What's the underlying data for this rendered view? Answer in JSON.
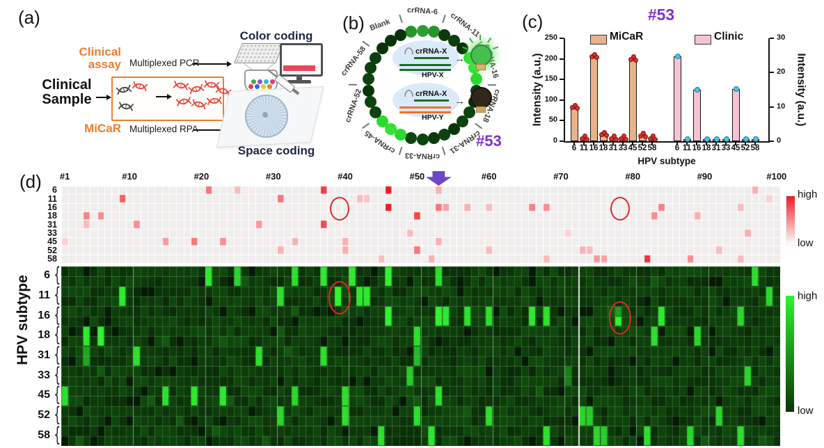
{
  "panel_a": {
    "label": "(a)",
    "clinical_assay": [
      "Clinical",
      "assay"
    ],
    "multiplexed_pcr": "Multiplexed PCR",
    "clinical_sample": [
      "Clinical",
      "Sample"
    ],
    "micar_label": "MiCaR",
    "multiplexed_rpa": "Multiplexed RPA",
    "color_coding": "Color coding",
    "space_coding": "Space coding",
    "orange": "#ee7d2e",
    "dna_dark": "#474747",
    "dna_red": "#e8483c",
    "bead_colors": [
      "#e04038",
      "#3a62d8",
      "#f5c518",
      "#ef7d20",
      "#3fae4a",
      "#9a4fd0",
      "#28c0d8",
      "#d83a88"
    ]
  },
  "panel_b": {
    "label": "(b)",
    "sample_id": "#53",
    "sample_id_color": "#7e2fcf",
    "ring": [
      {
        "label": "crRNA-6",
        "angle": 0,
        "level": "medium"
      },
      {
        "label": "crRNA-11",
        "angle": 36,
        "level": "off"
      },
      {
        "label": "crRNA-16",
        "angle": 72,
        "level": "bright"
      },
      {
        "label": "crRNA-18",
        "angle": 108,
        "level": "off"
      },
      {
        "label": "crRNA-31",
        "angle": 144,
        "level": "off"
      },
      {
        "label": "crRNA-33",
        "angle": 180,
        "level": "off"
      },
      {
        "label": "crRNA-45",
        "angle": 216,
        "level": "bright"
      },
      {
        "label": "crRNA-52",
        "angle": 252,
        "level": "off"
      },
      {
        "label": "crRNA-58",
        "angle": 288,
        "level": "off"
      },
      {
        "label": "Blank",
        "angle": 324,
        "level": "blank"
      }
    ],
    "dot_colors": {
      "bright": "#31e431",
      "medium": "#2d9e32",
      "off": "#0b3a0d",
      "blank": "#093208"
    },
    "inset": {
      "top": {
        "probe": "crRNA-X",
        "target": "HPV-X",
        "bulb": "on"
      },
      "bottom": {
        "probe": "crRNA-X",
        "target": "HPV-Y",
        "bulb": "off"
      },
      "strand_color_match": "#1d6b2e",
      "strand_color_mismatch": "#f07030"
    },
    "arrow_icon": "→"
  },
  "panel_c": {
    "label": "(c)"
  },
  "panel_d": {
    "label": "(d)",
    "y_axis_label": "HPV subtype",
    "arrow_color": "#6d48c2",
    "circle_color": "#e02828"
  },
  "chart_data": [
    {
      "type": "bar",
      "title": "#53",
      "title_color": "#7e2fcf",
      "categories": [
        "6",
        "11",
        "16",
        "18",
        "31",
        "33",
        "45",
        "52",
        "58"
      ],
      "series": [
        {
          "name": "MiCaR",
          "axis": "left",
          "color": "#eab288",
          "point_color": "#d8322a",
          "values": [
            80,
            3,
            203,
            14,
            3,
            5,
            197,
            11,
            4
          ]
        },
        {
          "name": "Clinic",
          "axis": "right",
          "color": "#f5c3d5",
          "point_color": "#4ec3e8",
          "values": [
            24.8,
            0.3,
            15,
            0.4,
            0.4,
            0.4,
            15.2,
            0.3,
            0.5
          ]
        }
      ],
      "ylabel_left": "Intensity (a.u.)",
      "ylabel_right": "Intensity (a.u.)",
      "xlabel": "HPV subtype",
      "ylim_left": [
        0,
        250
      ],
      "yticks_left": [
        0,
        50,
        100,
        150,
        200,
        250
      ],
      "ylim_right": [
        0,
        30
      ],
      "yticks_right": [
        0,
        10,
        20,
        30
      ],
      "legend_position": "top",
      "grid": false
    },
    {
      "type": "heatmap",
      "name": "clinic-heatmap",
      "rows": [
        "6",
        "11",
        "16",
        "18",
        "31",
        "33",
        "45",
        "52",
        "58"
      ],
      "n_cols": 100,
      "col_labels": [
        [
          "#1",
          1
        ],
        [
          "#10",
          10
        ],
        [
          "#20",
          20
        ],
        [
          "#30",
          30
        ],
        [
          "#40",
          40
        ],
        [
          "#50",
          50
        ],
        [
          "#60",
          60
        ],
        [
          "#70",
          70
        ],
        [
          "#80",
          80
        ],
        [
          "#90",
          90
        ],
        [
          "#100",
          100
        ]
      ],
      "colorscale": {
        "low_color": "#f0eded",
        "high_color": "#ed1c24",
        "label_high": "high",
        "label_low": "low"
      },
      "cells_format": [
        "subtype",
        "sample_col",
        "value_0_to_1"
      ],
      "cells": [
        [
          "6",
          21,
          0.6
        ],
        [
          "6",
          25,
          0.3
        ],
        [
          "6",
          37,
          0.85
        ],
        [
          "6",
          46,
          1
        ],
        [
          "6",
          53,
          0.35
        ],
        [
          "6",
          97,
          0.35
        ],
        [
          "11",
          9,
          0.7
        ],
        [
          "11",
          31,
          0.6
        ],
        [
          "11",
          42,
          0.3
        ],
        [
          "11",
          43,
          0.25
        ],
        [
          "11",
          99,
          0.2
        ],
        [
          "16",
          46,
          1
        ],
        [
          "16",
          53,
          0.6
        ],
        [
          "16",
          54,
          0.4
        ],
        [
          "16",
          57,
          0.35
        ],
        [
          "16",
          60,
          0.3
        ],
        [
          "16",
          66,
          0.55
        ],
        [
          "16",
          68,
          0.5
        ],
        [
          "16",
          84,
          0.55
        ],
        [
          "16",
          95,
          0.3
        ],
        [
          "18",
          4,
          0.55
        ],
        [
          "18",
          6,
          0.5
        ],
        [
          "18",
          50,
          0.8
        ],
        [
          "18",
          83,
          0.5
        ],
        [
          "18",
          89,
          0.35
        ],
        [
          "31",
          4,
          0.3
        ],
        [
          "31",
          11,
          0.5
        ],
        [
          "31",
          28,
          0.45
        ],
        [
          "31",
          37,
          0.8
        ],
        [
          "33",
          49,
          0.3
        ],
        [
          "33",
          71,
          0.2
        ],
        [
          "33",
          96,
          0.35
        ],
        [
          "45",
          1,
          0.2
        ],
        [
          "45",
          15,
          0.45
        ],
        [
          "45",
          19,
          0.6
        ],
        [
          "45",
          23,
          0.5
        ],
        [
          "45",
          33,
          0.35
        ],
        [
          "45",
          40,
          0.35
        ],
        [
          "45",
          53,
          0.35
        ],
        [
          "52",
          31,
          0.35
        ],
        [
          "52",
          40,
          0.35
        ],
        [
          "52",
          50,
          0.6
        ],
        [
          "52",
          60,
          0.3
        ],
        [
          "52",
          73,
          0.35
        ],
        [
          "52",
          74,
          0.3
        ],
        [
          "52",
          92,
          0.3
        ],
        [
          "58",
          45,
          0.3
        ],
        [
          "58",
          52,
          0.35
        ],
        [
          "58",
          68,
          0.3
        ],
        [
          "58",
          75,
          0.45
        ],
        [
          "58",
          76,
          0.4
        ],
        [
          "58",
          82,
          0.9
        ],
        [
          "58",
          88,
          0.5
        ],
        [
          "58",
          95,
          0.3
        ]
      ],
      "circles": [
        [
          "16",
          39
        ],
        [
          "16",
          78
        ]
      ],
      "arrow_col": 53
    },
    {
      "type": "heatmap",
      "name": "micar-heatmap",
      "rows": [
        "6",
        "11",
        "16",
        "18",
        "31",
        "33",
        "45",
        "52",
        "58"
      ],
      "sub_rows_per_type": 2,
      "n_cols": 100,
      "colorscale": {
        "low_color": "#0a3406",
        "high_color": "#2df52d",
        "label_high": "high",
        "label_low": "low"
      },
      "cells_format": [
        "subtype",
        "sample_col",
        "value_0_to_1"
      ],
      "cells": [
        [
          "6",
          21,
          0.95
        ],
        [
          "6",
          25,
          0.85
        ],
        [
          "6",
          33,
          0.9
        ],
        [
          "6",
          37,
          0.95
        ],
        [
          "6",
          41,
          0.95
        ],
        [
          "6",
          46,
          1
        ],
        [
          "6",
          53,
          0.9
        ],
        [
          "6",
          97,
          0.9
        ],
        [
          "11",
          9,
          0.95
        ],
        [
          "11",
          31,
          0.9
        ],
        [
          "11",
          39,
          1
        ],
        [
          "11",
          42,
          0.95
        ],
        [
          "11",
          43,
          0.95
        ],
        [
          "11",
          99,
          0.85
        ],
        [
          "16",
          46,
          1
        ],
        [
          "16",
          53,
          1
        ],
        [
          "16",
          54,
          0.95
        ],
        [
          "16",
          57,
          0.9
        ],
        [
          "16",
          60,
          0.9
        ],
        [
          "16",
          66,
          0.95
        ],
        [
          "16",
          68,
          0.9
        ],
        [
          "16",
          78,
          1
        ],
        [
          "16",
          84,
          0.95
        ],
        [
          "16",
          95,
          0.85
        ],
        [
          "18",
          4,
          0.95
        ],
        [
          "18",
          6,
          1
        ],
        [
          "18",
          50,
          0.9
        ],
        [
          "18",
          83,
          0.9
        ],
        [
          "18",
          89,
          0.85
        ],
        [
          "31",
          4,
          0.6
        ],
        [
          "31",
          11,
          0.9
        ],
        [
          "31",
          28,
          0.9
        ],
        [
          "31",
          37,
          0.9
        ],
        [
          "31",
          50,
          0.7
        ],
        [
          "33",
          49,
          0.8
        ],
        [
          "33",
          71,
          0.4
        ],
        [
          "33",
          96,
          0.85
        ],
        [
          "45",
          1,
          0.9
        ],
        [
          "45",
          15,
          0.9
        ],
        [
          "45",
          19,
          0.95
        ],
        [
          "45",
          23,
          0.95
        ],
        [
          "45",
          33,
          0.85
        ],
        [
          "45",
          40,
          0.9
        ],
        [
          "45",
          53,
          0.9
        ],
        [
          "52",
          31,
          0.85
        ],
        [
          "52",
          40,
          0.9
        ],
        [
          "52",
          50,
          0.9
        ],
        [
          "52",
          60,
          0.9
        ],
        [
          "52",
          73,
          0.85
        ],
        [
          "52",
          74,
          0.8
        ],
        [
          "52",
          92,
          0.85
        ],
        [
          "58",
          45,
          0.9
        ],
        [
          "58",
          52,
          0.95
        ],
        [
          "58",
          68,
          0.9
        ],
        [
          "58",
          75,
          0.85
        ],
        [
          "58",
          76,
          0.8
        ],
        [
          "58",
          82,
          0.9
        ],
        [
          "58",
          88,
          0.85
        ],
        [
          "58",
          95,
          0.9
        ]
      ],
      "split_cells": [
        [
          "16",
          78,
          0.55,
          1.0
        ]
      ],
      "circles": [
        [
          "11",
          39
        ],
        [
          "16",
          78
        ]
      ],
      "seam_after_col": 72
    }
  ]
}
